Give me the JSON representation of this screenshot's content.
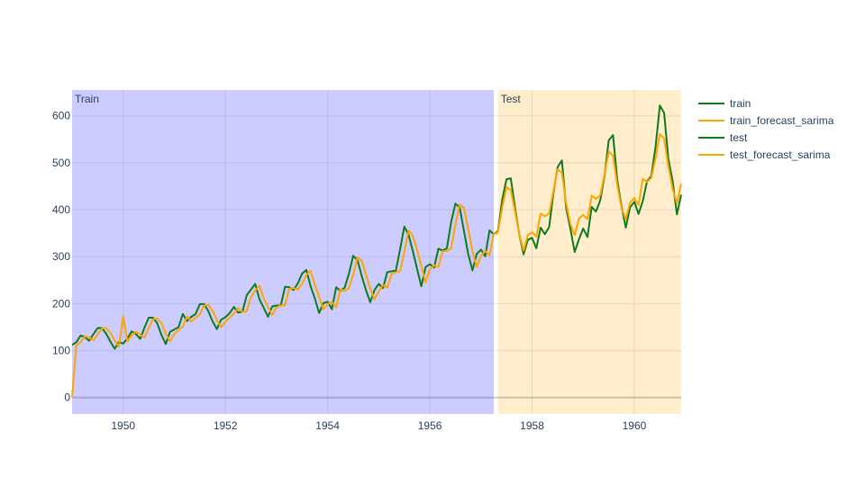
{
  "chart_data": {
    "type": "line",
    "title": "",
    "xlabel": "",
    "ylabel": "",
    "xlim": [
      1949.0,
      1960.917
    ],
    "ylim": [
      -35,
      655
    ],
    "grid": true,
    "legend_position": "top-right",
    "x_ticks": [
      1950,
      1952,
      1954,
      1956,
      1958,
      1960
    ],
    "y_ticks": [
      0,
      100,
      200,
      300,
      400,
      500,
      600
    ],
    "regions": [
      {
        "label": "Train",
        "x0": 1949.0,
        "x1": 1957.25,
        "color": "#ccccff"
      },
      {
        "label": "Test",
        "x0": 1957.333,
        "x1": 1960.917,
        "color": "#ffedcc"
      }
    ],
    "series": [
      {
        "name": "train",
        "color": "#0e7a1e",
        "x_start": 1949.0,
        "x_step": 0.08333,
        "values": [
          112,
          118,
          132,
          129,
          121,
          135,
          148,
          148,
          136,
          119,
          104,
          118,
          115,
          126,
          141,
          135,
          125,
          149,
          170,
          170,
          158,
          133,
          114,
          140,
          145,
          150,
          178,
          163,
          172,
          178,
          199,
          199,
          184,
          162,
          146,
          166,
          171,
          180,
          193,
          181,
          183,
          218,
          230,
          242,
          209,
          191,
          172,
          194,
          196,
          196,
          236,
          235,
          229,
          243,
          264,
          272,
          237,
          211,
          180,
          201,
          204,
          188,
          235,
          227,
          234,
          264,
          302,
          293,
          259,
          229,
          203,
          229,
          242,
          233,
          267,
          269,
          270,
          315,
          364,
          347,
          312,
          274,
          237,
          278,
          284,
          277,
          317,
          313,
          318,
          374,
          413,
          405,
          355,
          306,
          271,
          306,
          315,
          301,
          356,
          348
        ]
      },
      {
        "name": "train_forecast_sarima",
        "color": "#ffa500",
        "x_start": 1949.0,
        "x_step": 0.08333,
        "values": [
          0,
          111,
          118,
          131,
          128,
          122,
          134,
          147,
          148,
          138,
          122,
          108,
          173,
          119,
          133,
          140,
          134,
          128,
          148,
          167,
          168,
          159,
          136,
          120,
          135,
          144,
          151,
          173,
          162,
          170,
          177,
          196,
          197,
          185,
          165,
          150,
          162,
          170,
          179,
          190,
          182,
          184,
          214,
          228,
          238,
          211,
          193,
          176,
          192,
          196,
          197,
          232,
          233,
          230,
          242,
          261,
          270,
          240,
          215,
          188,
          199,
          204,
          192,
          231,
          227,
          233,
          261,
          298,
          292,
          262,
          233,
          209,
          226,
          240,
          234,
          263,
          267,
          269,
          309,
          356,
          345,
          315,
          280,
          245,
          273,
          282,
          278,
          312,
          312,
          318,
          368,
          411,
          404,
          360,
          312,
          278,
          302,
          312,
          303,
          349,
          349
        ]
      },
      {
        "name": "test",
        "color": "#0e7a1e",
        "x_start": 1957.25,
        "x_step": 0.08333,
        "values": [
          348,
          355,
          422,
          465,
          467,
          404,
          347,
          305,
          336,
          340,
          318,
          362,
          348,
          363,
          435,
          491,
          505,
          404,
          359,
          310,
          337,
          360,
          342,
          406,
          396,
          420,
          472,
          548,
          559,
          463,
          407,
          362,
          405,
          417,
          391,
          419,
          461,
          472,
          535,
          622,
          606,
          508,
          461,
          390,
          432
        ]
      },
      {
        "name": "test_forecast_sarima",
        "color": "#ffa500",
        "x_start": 1957.25,
        "x_step": 0.08333,
        "values": [
          348,
          353,
          405,
          448,
          442,
          396,
          348,
          313,
          346,
          352,
          343,
          392,
          386,
          392,
          440,
          486,
          479,
          414,
          370,
          346,
          381,
          389,
          380,
          430,
          423,
          431,
          475,
          524,
          515,
          452,
          403,
          380,
          415,
          425,
          410,
          466,
          459,
          468,
          510,
          561,
          552,
          492,
          444,
          414,
          455
        ]
      }
    ]
  }
}
